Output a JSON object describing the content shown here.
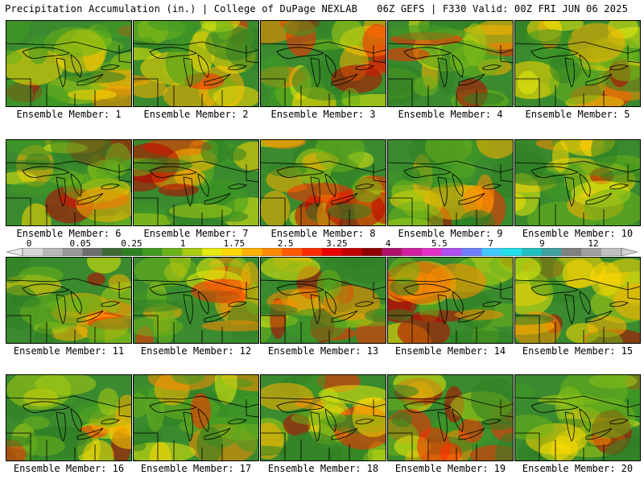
{
  "header": {
    "left": "Precipitation Accumulation (in.) | College of DuPage NEXLAB",
    "right": "06Z GEFS | F330 Valid: 00Z FRI JUN 06 2025"
  },
  "colorbar": {
    "labels": [
      "0",
      "0.05",
      "0.25",
      "1",
      "1.75",
      "2.5",
      "3.25",
      "4",
      "5.5",
      "7",
      "9",
      "12"
    ],
    "colors": [
      "#d8d8d8",
      "#b8b8b8",
      "#989898",
      "#6e6e6e",
      "#3b6b33",
      "#2f7f25",
      "#3f9a22",
      "#6cb319",
      "#a7cc12",
      "#e6ea0c",
      "#ffd700",
      "#ffb000",
      "#ff8a00",
      "#ff5a00",
      "#ff2a00",
      "#e80000",
      "#c00000",
      "#900000",
      "#b0106a",
      "#d020a0",
      "#e030c8",
      "#b050f0",
      "#7080ff",
      "#40c8ff",
      "#20e0e8",
      "#20c0c0",
      "#40a0a0",
      "#808080",
      "#a0a0a0",
      "#c0c0c0"
    ]
  },
  "members": [
    {
      "label": "Ensemble Member: 1"
    },
    {
      "label": "Ensemble Member: 2"
    },
    {
      "label": "Ensemble Member: 3"
    },
    {
      "label": "Ensemble Member: 4"
    },
    {
      "label": "Ensemble Member: 5"
    },
    {
      "label": "Ensemble Member: 6"
    },
    {
      "label": "Ensemble Member: 7"
    },
    {
      "label": "Ensemble Member: 8"
    },
    {
      "label": "Ensemble Member: 9"
    },
    {
      "label": "Ensemble Member: 10"
    },
    {
      "label": "Ensemble Member: 11"
    },
    {
      "label": "Ensemble Member: 12"
    },
    {
      "label": "Ensemble Member: 13"
    },
    {
      "label": "Ensemble Member: 14"
    },
    {
      "label": "Ensemble Member: 15"
    },
    {
      "label": "Ensemble Member: 16"
    },
    {
      "label": "Ensemble Member: 17"
    },
    {
      "label": "Ensemble Member: 18"
    },
    {
      "label": "Ensemble Member: 19"
    },
    {
      "label": "Ensemble Member: 20"
    }
  ]
}
